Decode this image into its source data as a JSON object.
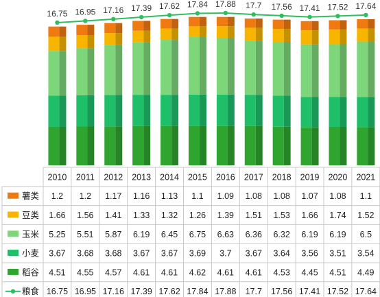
{
  "chart_data": {
    "type": "bar",
    "stacked": true,
    "categories": [
      "2010",
      "2011",
      "2012",
      "2013",
      "2014",
      "2015",
      "2016",
      "2017",
      "2018",
      "2019",
      "2020",
      "2021"
    ],
    "series": [
      {
        "name": "稻谷",
        "color": "#2fa52f",
        "values": [
          4.51,
          4.55,
          4.57,
          4.61,
          4.61,
          4.62,
          4.61,
          4.61,
          4.53,
          4.45,
          4.51,
          4.49
        ]
      },
      {
        "name": "小麦",
        "color": "#1fbf6a",
        "values": [
          3.67,
          3.68,
          3.68,
          3.67,
          3.67,
          3.69,
          3.7,
          3.67,
          3.64,
          3.56,
          3.51,
          3.54
        ]
      },
      {
        "name": "玉米",
        "color": "#7ed67a",
        "values": [
          5.25,
          5.51,
          5.87,
          6.19,
          6.45,
          6.75,
          6.63,
          6.36,
          6.32,
          6.19,
          6.19,
          6.5
        ]
      },
      {
        "name": "豆类",
        "color": "#f7b500",
        "values": [
          1.66,
          1.56,
          1.41,
          1.33,
          1.32,
          1.26,
          1.39,
          1.51,
          1.53,
          1.66,
          1.74,
          1.52
        ]
      },
      {
        "name": "薯类",
        "color": "#f07a12",
        "values": [
          1.2,
          1.2,
          1.17,
          1.16,
          1.13,
          1.1,
          1.09,
          1.08,
          1.08,
          1.07,
          1.08,
          1.1
        ]
      }
    ],
    "line": {
      "name": "粮食",
      "color": "#2ebd5f",
      "values": [
        16.75,
        16.95,
        17.16,
        17.39,
        17.62,
        17.84,
        17.88,
        17.7,
        17.56,
        17.41,
        17.52,
        17.64
      ]
    },
    "table_rows": [
      "薯类",
      "豆类",
      "玉米",
      "小麦",
      "稻谷",
      "粮食"
    ],
    "ylim": [
      0,
      18.6
    ],
    "legend": "data-table",
    "grid": false
  }
}
